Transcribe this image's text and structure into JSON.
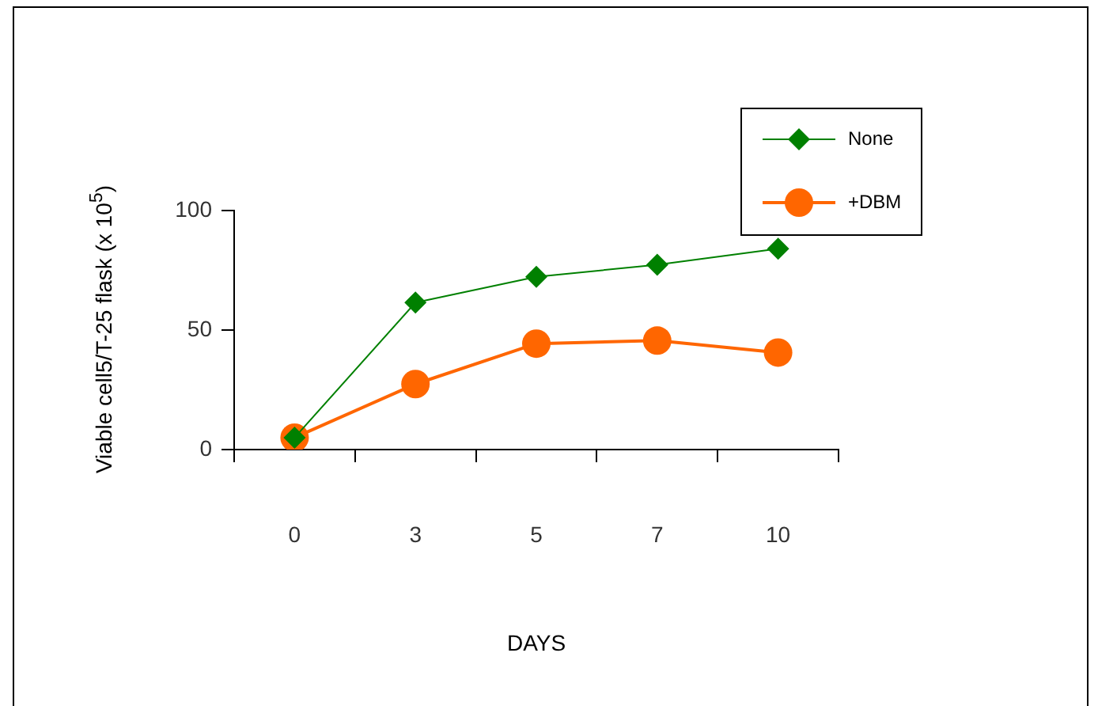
{
  "chart_data": {
    "type": "line",
    "xlabel": "DAYS",
    "ylabel": "Viable cell5/T-25 flask (x 10$^{5}$)",
    "categories": [
      "0",
      "3",
      "5",
      "7",
      "10"
    ],
    "ylim": [
      0,
      100
    ],
    "yticks": [
      0,
      50,
      100
    ],
    "grid": false,
    "legend": "top right",
    "series": [
      {
        "name": "None",
        "color": "#008000",
        "marker": "diamond",
        "values": [
          5,
          61.5,
          72.3,
          77.3,
          84
        ]
      },
      {
        "name": "+DBM",
        "color": "#ff6600",
        "marker": "circle",
        "values": [
          5,
          27.4,
          44.3,
          45.6,
          40.6
        ]
      }
    ]
  }
}
